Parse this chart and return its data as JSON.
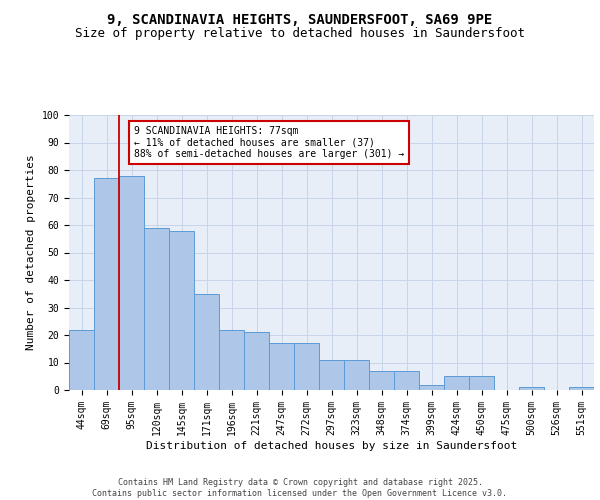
{
  "title1": "9, SCANDINAVIA HEIGHTS, SAUNDERSFOOT, SA69 9PE",
  "title2": "Size of property relative to detached houses in Saundersfoot",
  "xlabel": "Distribution of detached houses by size in Saundersfoot",
  "ylabel": "Number of detached properties",
  "categories": [
    "44sqm",
    "69sqm",
    "95sqm",
    "120sqm",
    "145sqm",
    "171sqm",
    "196sqm",
    "221sqm",
    "247sqm",
    "272sqm",
    "297sqm",
    "323sqm",
    "348sqm",
    "374sqm",
    "399sqm",
    "424sqm",
    "450sqm",
    "475sqm",
    "500sqm",
    "526sqm",
    "551sqm"
  ],
  "values": [
    22,
    77,
    78,
    59,
    58,
    35,
    22,
    21,
    17,
    17,
    11,
    11,
    7,
    7,
    2,
    5,
    5,
    0,
    1,
    0,
    1
  ],
  "bar_color": "#aec6e8",
  "bar_edge_color": "#5b9bd5",
  "grid_color": "#c8d4e8",
  "background_color": "#e8eef8",
  "vline_x": 1.5,
  "vline_color": "#cc0000",
  "annotation_text": "9 SCANDINAVIA HEIGHTS: 77sqm\n← 11% of detached houses are smaller (37)\n88% of semi-detached houses are larger (301) →",
  "annotation_box_color": "#ffffff",
  "annotation_box_edge": "#cc0000",
  "footnote": "Contains HM Land Registry data © Crown copyright and database right 2025.\nContains public sector information licensed under the Open Government Licence v3.0.",
  "ylim": [
    0,
    100
  ],
  "title1_fontsize": 10,
  "title2_fontsize": 9,
  "xlabel_fontsize": 8,
  "ylabel_fontsize": 8,
  "tick_fontsize": 7,
  "annot_fontsize": 7,
  "footnote_fontsize": 6
}
